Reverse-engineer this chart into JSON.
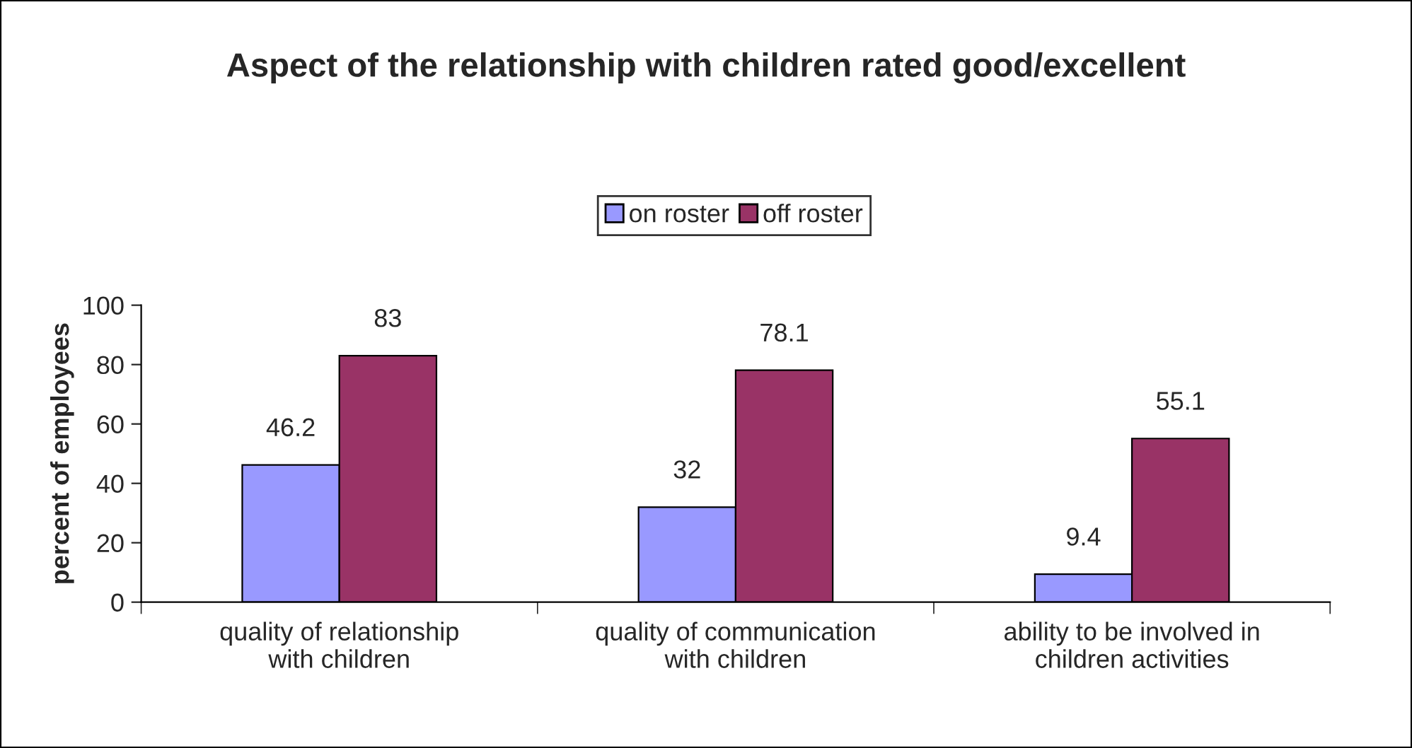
{
  "chart_data": {
    "type": "bar",
    "title": "Aspect of the relationship with children rated good/excellent",
    "ylabel": "percent of employees",
    "categories": [
      "quality of relationship\nwith children",
      "quality of communication\nwith children",
      "ability to be involved in\nchildren activities"
    ],
    "series": [
      {
        "name": "on roster",
        "color": "#9999ff",
        "values": [
          46.2,
          32,
          9.4
        ]
      },
      {
        "name": "off roster",
        "color": "#993366",
        "values": [
          83,
          78.1,
          55.1
        ]
      }
    ],
    "ylim": [
      0,
      100
    ],
    "yticks": [
      0,
      20,
      40,
      60,
      80,
      100
    ],
    "data_labels": true,
    "legend": "top",
    "grid": false
  }
}
